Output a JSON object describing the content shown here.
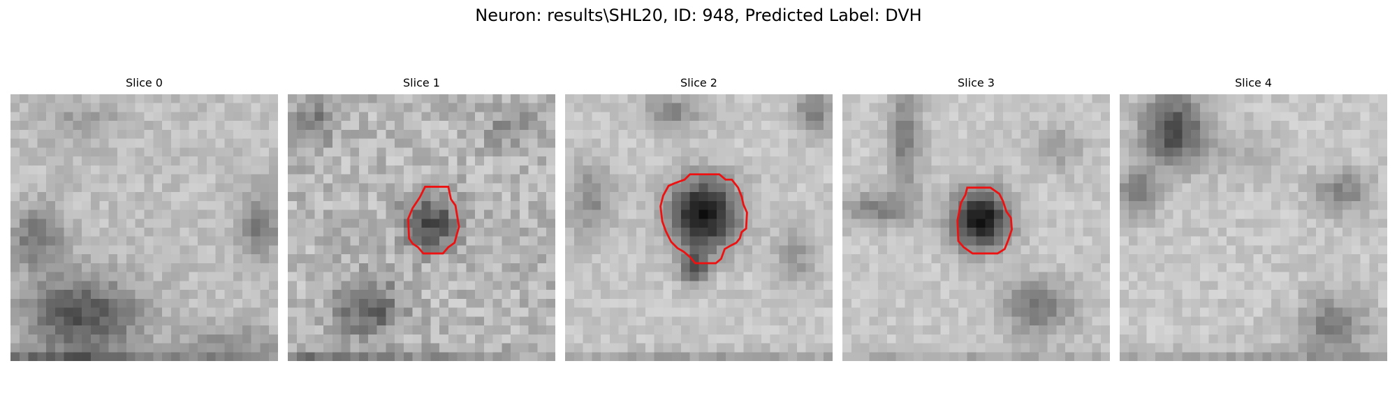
{
  "figure": {
    "title": "Neuron: results\\SHL20, ID: 948, Predicted Label: DVH"
  },
  "colors": {
    "background": "#ffffff",
    "contour": "#ee1111"
  },
  "slices": [
    {
      "title": "Slice 0",
      "has_contour": false,
      "description_icon": "grayscale-microscopy-tile",
      "contour_points": []
    },
    {
      "title": "Slice 1",
      "has_contour": true,
      "description_icon": "grayscale-microscopy-tile",
      "contour_points": [
        [
          15.4,
          10.4
        ],
        [
          18.0,
          10.4
        ],
        [
          18.3,
          11.8
        ],
        [
          18.8,
          12.5
        ],
        [
          19.2,
          14.9
        ],
        [
          18.7,
          16.7
        ],
        [
          18.0,
          17.2
        ],
        [
          17.4,
          17.9
        ],
        [
          15.2,
          17.9
        ],
        [
          14.6,
          17.2
        ],
        [
          14.0,
          16.8
        ],
        [
          13.6,
          16.2
        ],
        [
          13.5,
          14.0
        ],
        [
          14.0,
          12.8
        ],
        [
          14.8,
          11.6
        ]
      ]
    },
    {
      "title": "Slice 2",
      "has_contour": true,
      "description_icon": "grayscale-microscopy-tile",
      "contour_points": [
        [
          14.0,
          9.0
        ],
        [
          17.3,
          9.0
        ],
        [
          18.0,
          9.6
        ],
        [
          18.7,
          9.6
        ],
        [
          19.4,
          10.5
        ],
        [
          19.8,
          11.5
        ],
        [
          20.0,
          12.4
        ],
        [
          20.4,
          13.3
        ],
        [
          20.3,
          15.1
        ],
        [
          19.8,
          15.5
        ],
        [
          19.6,
          16.2
        ],
        [
          19.2,
          16.7
        ],
        [
          18.6,
          17.0
        ],
        [
          17.9,
          17.4
        ],
        [
          17.5,
          18.5
        ],
        [
          16.9,
          19.0
        ],
        [
          14.6,
          19.0
        ],
        [
          14.0,
          18.3
        ],
        [
          13.3,
          17.7
        ],
        [
          12.6,
          17.3
        ],
        [
          11.9,
          16.6
        ],
        [
          11.3,
          15.4
        ],
        [
          10.9,
          14.3
        ],
        [
          10.7,
          12.6
        ],
        [
          11.0,
          11.4
        ],
        [
          11.6,
          10.3
        ],
        [
          12.3,
          10.0
        ],
        [
          13.4,
          9.6
        ]
      ]
    },
    {
      "title": "Slice 3",
      "has_contour": true,
      "description_icon": "grayscale-microscopy-tile",
      "contour_points": [
        [
          14.0,
          10.5
        ],
        [
          16.6,
          10.5
        ],
        [
          17.6,
          11.2
        ],
        [
          18.0,
          12.0
        ],
        [
          18.4,
          13.2
        ],
        [
          18.9,
          13.9
        ],
        [
          19.0,
          15.2
        ],
        [
          18.6,
          16.4
        ],
        [
          18.2,
          17.4
        ],
        [
          17.4,
          17.9
        ],
        [
          14.6,
          17.9
        ],
        [
          13.6,
          17.2
        ],
        [
          13.0,
          16.5
        ],
        [
          12.9,
          14.2
        ],
        [
          13.3,
          12.2
        ],
        [
          13.8,
          11.3
        ]
      ]
    },
    {
      "title": "Slice 4",
      "has_contour": false,
      "description_icon": "grayscale-microscopy-tile",
      "contour_points": []
    }
  ]
}
